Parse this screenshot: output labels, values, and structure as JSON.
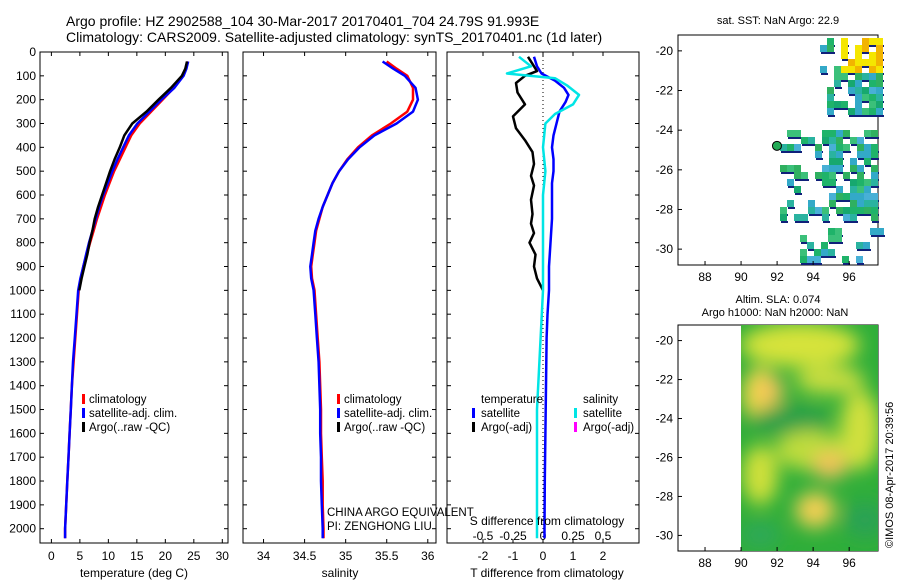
{
  "title_line1": "Argo profile: HZ 2902588_104 30-Mar-2017 20170401_704 24.79S 91.993E",
  "title_line2": "Climatology: CARS2009. Satellite-adjusted climatology: synTS_20170401.nc (1d later)",
  "sst_title": "sat. SST: NaN Argo: 22.9",
  "sla_title1": "Altim. SLA: 0.074",
  "sla_title2": "Argo h1000: NaN h2000: NaN",
  "credit": "©IMOS 08-Apr-2017 20:39:56",
  "pi_line1": "CHINA ARGO EQUIVALENT",
  "pi_line2": "PI: ZENGHONG LIU",
  "colors": {
    "climatology": "#ff0000",
    "satellite": "#0000ff",
    "argo": "#000000",
    "sat_diff": "#00e5e5",
    "argo_adj": "#ff00ff"
  },
  "chart_data": [
    {
      "type": "line",
      "xlabel": "temperature (deg C)",
      "xlim": [
        -2,
        31
      ],
      "xticks": [
        "0",
        "5",
        "10",
        "15",
        "20",
        "25",
        "30"
      ],
      "ylim": [
        2060,
        0
      ],
      "yticks": [
        "0",
        "100",
        "200",
        "300",
        "400",
        "500",
        "600",
        "700",
        "800",
        "900",
        "1000",
        "1100",
        "1200",
        "1300",
        "1400",
        "1500",
        "1600",
        "1700",
        "1800",
        "1900",
        "2000"
      ],
      "legend": [
        "climatology",
        "satellite-adj. clim.",
        "Argo(..raw -QC)"
      ],
      "series": [
        {
          "name": "climatology",
          "points": [
            [
              24,
              40
            ],
            [
              23.6,
              70
            ],
            [
              23,
              100
            ],
            [
              21.5,
              150
            ],
            [
              19.5,
              200
            ],
            [
              17.5,
              250
            ],
            [
              15.5,
              300
            ],
            [
              14,
              350
            ],
            [
              13,
              400
            ],
            [
              12,
              450
            ],
            [
              11,
              500
            ],
            [
              10.2,
              550
            ],
            [
              9.4,
              600
            ],
            [
              8.7,
              650
            ],
            [
              8,
              700
            ],
            [
              7.4,
              750
            ],
            [
              6.8,
              800
            ],
            [
              6.2,
              850
            ],
            [
              5.6,
              900
            ],
            [
              5.2,
              950
            ],
            [
              4.8,
              1000
            ],
            [
              4.5,
              1100
            ],
            [
              4.2,
              1200
            ],
            [
              3.9,
              1300
            ],
            [
              3.6,
              1400
            ],
            [
              3.4,
              1500
            ],
            [
              3.2,
              1600
            ],
            [
              3.0,
              1700
            ],
            [
              2.8,
              1800
            ],
            [
              2.6,
              1900
            ],
            [
              2.4,
              2000
            ],
            [
              2.4,
              2040
            ]
          ]
        },
        {
          "name": "satellite-adj. clim.",
          "points": [
            [
              24,
              40
            ],
            [
              23.7,
              70
            ],
            [
              23.2,
              100
            ],
            [
              21.6,
              150
            ],
            [
              19.3,
              200
            ],
            [
              17.2,
              250
            ],
            [
              15.1,
              300
            ],
            [
              13.6,
              350
            ],
            [
              12.6,
              400
            ],
            [
              11.6,
              450
            ],
            [
              10.7,
              500
            ],
            [
              9.9,
              550
            ],
            [
              9.1,
              600
            ],
            [
              8.4,
              650
            ],
            [
              7.8,
              700
            ],
            [
              7.2,
              750
            ],
            [
              6.6,
              800
            ],
            [
              6.1,
              850
            ],
            [
              5.6,
              900
            ],
            [
              5.1,
              950
            ],
            [
              4.7,
              1000
            ],
            [
              4.4,
              1100
            ],
            [
              4.1,
              1200
            ],
            [
              3.8,
              1300
            ],
            [
              3.6,
              1400
            ],
            [
              3.4,
              1500
            ],
            [
              3.2,
              1600
            ],
            [
              3.0,
              1700
            ],
            [
              2.8,
              1800
            ],
            [
              2.6,
              1900
            ],
            [
              2.4,
              2000
            ],
            [
              2.4,
              2040
            ]
          ]
        },
        {
          "name": "Argo(..raw -QC)",
          "points": [
            [
              23.8,
              40
            ],
            [
              23.5,
              70
            ],
            [
              22.9,
              100
            ],
            [
              21,
              150
            ],
            [
              18.8,
              200
            ],
            [
              16.7,
              250
            ],
            [
              14.2,
              300
            ],
            [
              12.8,
              350
            ],
            [
              12,
              400
            ],
            [
              11.1,
              450
            ],
            [
              10.3,
              500
            ],
            [
              9.6,
              550
            ],
            [
              8.9,
              600
            ],
            [
              8.2,
              650
            ],
            [
              7.6,
              700
            ],
            [
              7.2,
              750
            ],
            [
              6.7,
              800
            ],
            [
              6.3,
              850
            ],
            [
              5.8,
              900
            ],
            [
              5.3,
              950
            ],
            [
              4.9,
              1000
            ]
          ]
        }
      ]
    },
    {
      "type": "line",
      "xlabel": "salinity",
      "xlim": [
        33.75,
        36.1
      ],
      "xticks": [
        "34",
        "34.5",
        "35",
        "35.5",
        "36"
      ],
      "ylim": [
        2060,
        0
      ],
      "legend": [
        "climatology",
        "satellite-adj. clim.",
        "Argo(..raw -QC)"
      ],
      "series": [
        {
          "name": "climatology",
          "points": [
            [
              35.5,
              40
            ],
            [
              35.62,
              70
            ],
            [
              35.75,
              100
            ],
            [
              35.82,
              150
            ],
            [
              35.82,
              200
            ],
            [
              35.75,
              250
            ],
            [
              35.55,
              300
            ],
            [
              35.32,
              350
            ],
            [
              35.15,
              400
            ],
            [
              35.02,
              450
            ],
            [
              34.92,
              500
            ],
            [
              34.84,
              550
            ],
            [
              34.78,
              600
            ],
            [
              34.72,
              650
            ],
            [
              34.68,
              700
            ],
            [
              34.64,
              750
            ],
            [
              34.62,
              800
            ],
            [
              34.6,
              850
            ],
            [
              34.58,
              900
            ],
            [
              34.59,
              950
            ],
            [
              34.62,
              1000
            ],
            [
              34.64,
              1100
            ],
            [
              34.66,
              1200
            ],
            [
              34.68,
              1300
            ],
            [
              34.69,
              1400
            ],
            [
              34.7,
              1500
            ],
            [
              34.7,
              1600
            ],
            [
              34.71,
              1700
            ],
            [
              34.72,
              1800
            ],
            [
              34.72,
              1900
            ],
            [
              34.73,
              2000
            ],
            [
              34.73,
              2040
            ]
          ]
        },
        {
          "name": "satellite-adj. clim.",
          "points": [
            [
              35.45,
              40
            ],
            [
              35.58,
              70
            ],
            [
              35.72,
              100
            ],
            [
              35.85,
              150
            ],
            [
              35.88,
              200
            ],
            [
              35.82,
              250
            ],
            [
              35.62,
              300
            ],
            [
              35.35,
              350
            ],
            [
              35.17,
              400
            ],
            [
              35.03,
              450
            ],
            [
              34.92,
              500
            ],
            [
              34.84,
              550
            ],
            [
              34.78,
              600
            ],
            [
              34.72,
              650
            ],
            [
              34.67,
              700
            ],
            [
              34.63,
              750
            ],
            [
              34.61,
              800
            ],
            [
              34.59,
              850
            ],
            [
              34.57,
              900
            ],
            [
              34.58,
              950
            ],
            [
              34.61,
              1000
            ],
            [
              34.63,
              1100
            ],
            [
              34.65,
              1200
            ],
            [
              34.67,
              1300
            ],
            [
              34.68,
              1400
            ],
            [
              34.69,
              1500
            ],
            [
              34.69,
              1600
            ],
            [
              34.7,
              1700
            ],
            [
              34.7,
              1800
            ],
            [
              34.71,
              1900
            ],
            [
              34.72,
              2000
            ],
            [
              34.72,
              2040
            ]
          ]
        },
        {
          "name": "Argo(..raw -QC)",
          "points": []
        }
      ]
    },
    {
      "type": "line",
      "xlabel": "T difference from climatology",
      "secondary_label": "S difference from climatology",
      "xlim": [
        -3.2,
        3.2
      ],
      "xticks": [
        "-2",
        "-1",
        "0",
        "1",
        "2"
      ],
      "sticks": [
        "-0.5",
        "-0.25",
        "0",
        "0.25",
        "0.5"
      ],
      "ylim": [
        2060,
        0
      ],
      "legend_temperature": [
        "temperature",
        "satellite",
        "Argo(-adj)"
      ],
      "legend_salinity": [
        "salinity",
        "satellite",
        "Argo(-adj)"
      ],
      "series": [
        {
          "name": "satellite",
          "points": [
            [
              -0.3,
              20
            ],
            [
              -0.2,
              60
            ],
            [
              -0.05,
              90
            ],
            [
              0.4,
              120
            ],
            [
              0.7,
              150
            ],
            [
              0.85,
              180
            ],
            [
              0.75,
              210
            ],
            [
              0.55,
              250
            ],
            [
              0.45,
              300
            ],
            [
              0.35,
              350
            ],
            [
              0.3,
              400
            ],
            [
              0.35,
              450
            ],
            [
              0.35,
              500
            ],
            [
              0.3,
              550
            ],
            [
              0.3,
              600
            ],
            [
              0.3,
              700
            ],
            [
              0.25,
              800
            ],
            [
              0.2,
              900
            ],
            [
              0.2,
              1000
            ],
            [
              0.15,
              1100
            ],
            [
              0.12,
              1200
            ],
            [
              0.1,
              1400
            ],
            [
              0.08,
              1600
            ],
            [
              0.06,
              1800
            ],
            [
              0.05,
              2000
            ],
            [
              0.05,
              2040
            ]
          ]
        },
        {
          "name": "Argo(-adj)",
          "points": [
            [
              -0.5,
              20
            ],
            [
              -0.3,
              60
            ],
            [
              -0.2,
              80
            ],
            [
              -0.6,
              100
            ],
            [
              -0.9,
              130
            ],
            [
              -0.85,
              170
            ],
            [
              -0.6,
              220
            ],
            [
              -1.0,
              270
            ],
            [
              -0.9,
              320
            ],
            [
              -0.6,
              370
            ],
            [
              -0.35,
              420
            ],
            [
              -0.3,
              470
            ],
            [
              -0.4,
              520
            ],
            [
              -0.3,
              560
            ],
            [
              -0.4,
              620
            ],
            [
              -0.35,
              680
            ],
            [
              -0.4,
              720
            ],
            [
              -0.3,
              760
            ],
            [
              -0.45,
              800
            ],
            [
              -0.25,
              850
            ],
            [
              -0.3,
              900
            ],
            [
              -0.2,
              950
            ],
            [
              0,
              1000
            ]
          ]
        },
        {
          "name": "satellite",
          "points": [
            [
              -0.2,
              20
            ],
            [
              -0.1,
              60
            ],
            [
              -0.3,
              90
            ],
            [
              0.1,
              110
            ],
            [
              0.2,
              140
            ],
            [
              0.3,
              180
            ],
            [
              0.25,
              220
            ],
            [
              0.1,
              260
            ],
            [
              0.02,
              300
            ],
            [
              0,
              400
            ],
            [
              0.02,
              500
            ],
            [
              0,
              600
            ],
            [
              0,
              800
            ],
            [
              0,
              1000
            ],
            [
              -0.02,
              1200
            ],
            [
              -0.05,
              1500
            ],
            [
              -0.05,
              1800
            ],
            [
              -0.05,
              2000
            ],
            [
              -0.05,
              2040
            ]
          ]
        }
      ]
    }
  ],
  "sst_map": {
    "xticks": [
      "88",
      "90",
      "92",
      "94",
      "96"
    ],
    "yticks": [
      "-20",
      "-22",
      "-24",
      "-26",
      "-28",
      "-30"
    ],
    "xlim": [
      86.5,
      97.6
    ],
    "ylim": [
      -30.8,
      -19.2
    ],
    "argo_position": [
      91.993,
      -24.79
    ]
  },
  "sla_map": {
    "xticks": [
      "88",
      "90",
      "92",
      "94",
      "96"
    ],
    "yticks": [
      "-20",
      "-22",
      "-24",
      "-26",
      "-28",
      "-30"
    ],
    "xlim": [
      86.5,
      97.6
    ],
    "ylim": [
      -30.8,
      -19.2
    ]
  }
}
